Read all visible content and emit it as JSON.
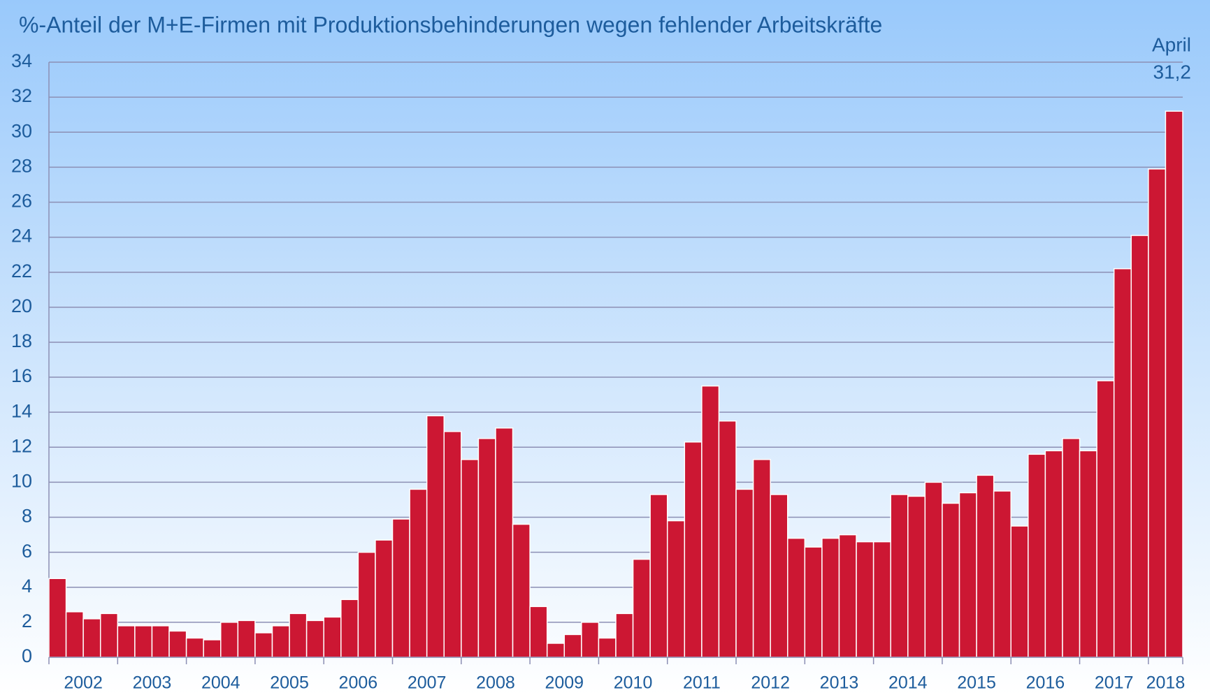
{
  "chart_data": {
    "type": "bar",
    "title": "%-Anteil der M+E-Firmen mit Produktionsbehinderungen wegen fehlender Arbeitskräfte",
    "annotation": "April",
    "categories": [
      "2002",
      null,
      null,
      null,
      "2003",
      null,
      null,
      null,
      "2004",
      null,
      null,
      null,
      "2005",
      null,
      null,
      null,
      "2006",
      null,
      null,
      null,
      "2007",
      null,
      null,
      null,
      "2008",
      null,
      null,
      null,
      "2009",
      null,
      null,
      null,
      "2010",
      null,
      null,
      null,
      "2011",
      null,
      null,
      null,
      "2012",
      null,
      null,
      null,
      "2013",
      null,
      null,
      null,
      "2014",
      null,
      null,
      null,
      "2015",
      null,
      null,
      null,
      "2016",
      null,
      null,
      null,
      "2017",
      null,
      null,
      null,
      "2018",
      null
    ],
    "values": [
      4.5,
      2.6,
      2.2,
      2.5,
      1.8,
      1.8,
      1.8,
      1.5,
      1.1,
      1.0,
      2.0,
      2.1,
      1.4,
      1.8,
      2.5,
      2.1,
      2.3,
      3.3,
      6.0,
      6.7,
      7.9,
      9.6,
      13.8,
      12.9,
      11.3,
      12.5,
      13.1,
      7.6,
      2.9,
      0.8,
      1.3,
      2.0,
      1.1,
      2.5,
      5.6,
      9.3,
      7.8,
      12.3,
      15.5,
      13.5,
      9.6,
      11.3,
      9.3,
      6.8,
      6.3,
      6.8,
      7.0,
      6.6,
      6.6,
      9.3,
      9.2,
      10.0,
      8.8,
      9.4,
      10.4,
      9.5,
      7.5,
      11.6,
      11.8,
      12.5,
      11.8,
      15.8,
      22.2,
      24.1,
      27.9,
      31.2
    ],
    "value_labels": [
      null,
      null,
      null,
      null,
      null,
      null,
      null,
      null,
      null,
      null,
      null,
      null,
      null,
      null,
      null,
      null,
      null,
      null,
      null,
      null,
      null,
      null,
      null,
      null,
      null,
      null,
      null,
      null,
      null,
      null,
      null,
      null,
      null,
      null,
      null,
      null,
      null,
      null,
      null,
      null,
      null,
      null,
      null,
      null,
      null,
      null,
      null,
      null,
      null,
      null,
      null,
      null,
      null,
      null,
      null,
      null,
      null,
      null,
      null,
      null,
      null,
      null,
      null,
      null,
      null,
      "31,2"
    ],
    "color": "#cc1733",
    "ylim": [
      0,
      34
    ],
    "yticks": [
      0,
      2,
      4,
      6,
      8,
      10,
      12,
      14,
      16,
      18,
      20,
      22,
      24,
      26,
      28,
      30,
      32,
      34
    ],
    "grid": true
  }
}
